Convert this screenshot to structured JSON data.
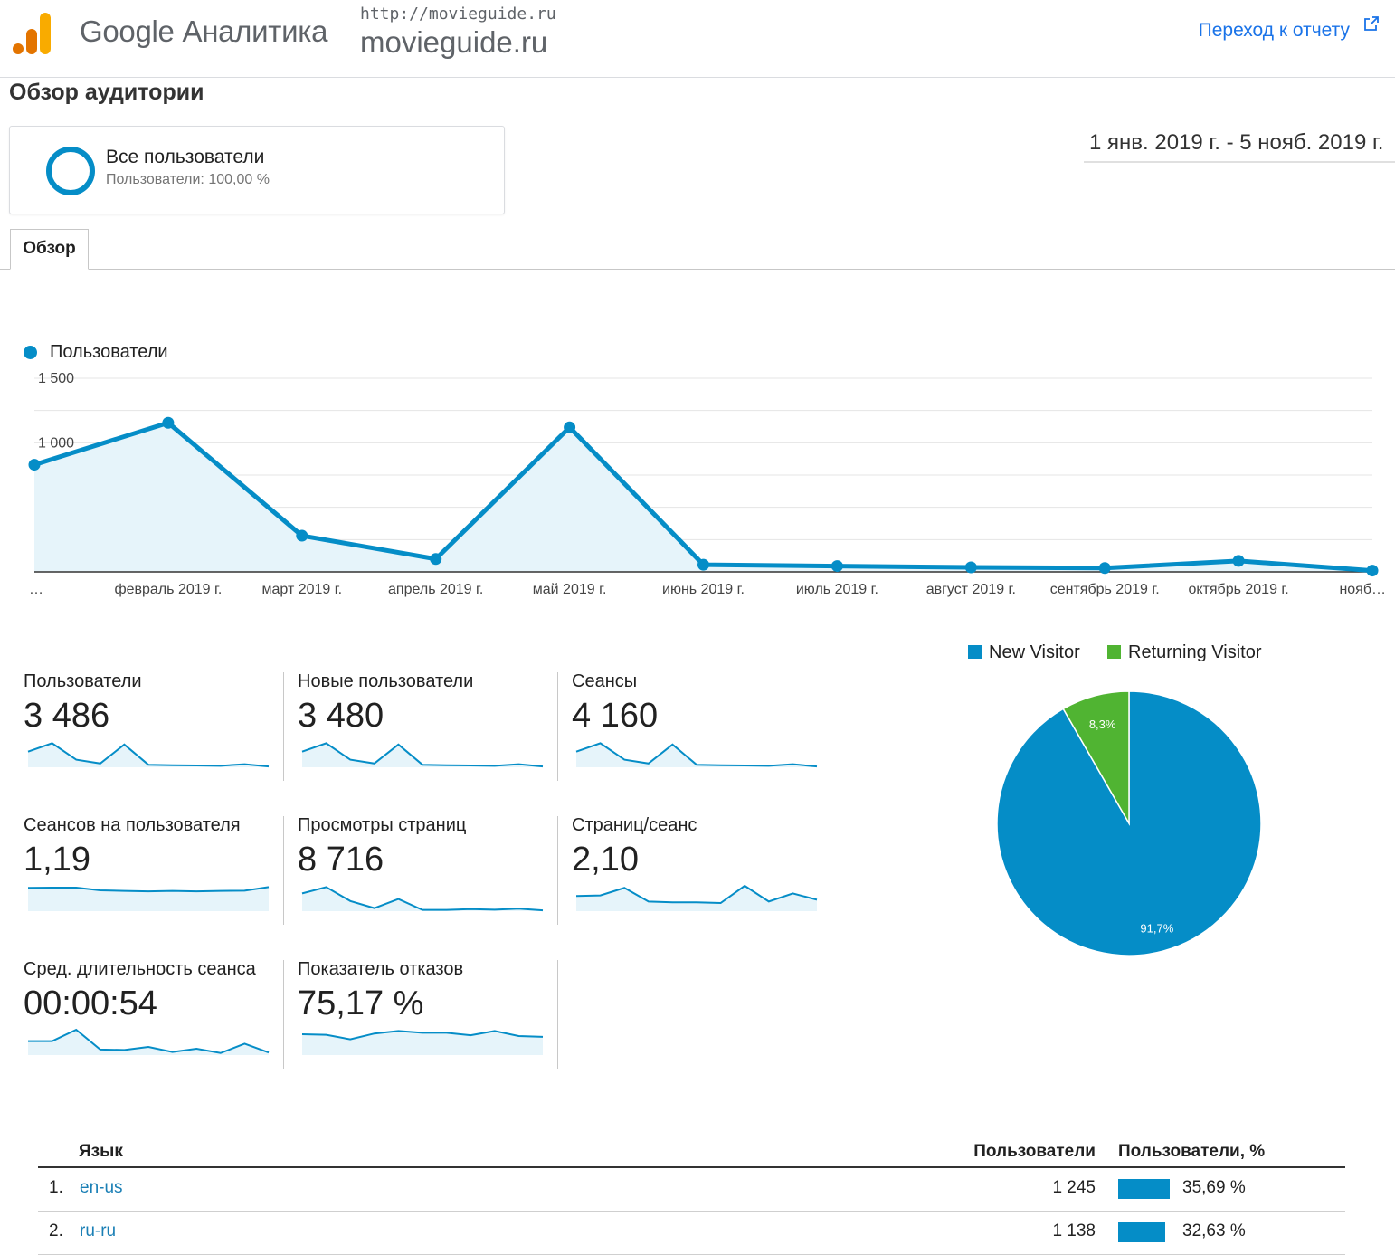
{
  "header": {
    "brand": "Google Аналитика",
    "site_url": "http://movieguide.ru",
    "site_name": "movieguide.ru",
    "report_link": "Переход к отчету"
  },
  "page_title": "Обзор аудитории",
  "segment": {
    "title": "Все пользователи",
    "subtitle": "Пользователи: 100,00 %"
  },
  "date_range": "1 янв. 2019 г. - 5 нояб. 2019 г.",
  "tab": "Обзор",
  "chart_data": [
    {
      "type": "line",
      "series": [
        {
          "name": "Пользователи",
          "values": [
            830,
            1155,
            280,
            100,
            1120,
            55,
            45,
            35,
            30,
            85,
            10
          ]
        }
      ],
      "categories": [
        "…",
        "февраль 2019 г.",
        "март 2019 г.",
        "апрель 2019 г.",
        "май 2019 г.",
        "июнь 2019 г.",
        "июль 2019 г.",
        "август 2019 г.",
        "сентябрь 2019 г.",
        "октябрь 2019 г.",
        "нояб…"
      ],
      "y_ticks": [
        "1 500",
        "1 000",
        "500"
      ],
      "ylim": [
        0,
        1500
      ],
      "color": "#058dc7",
      "grid": true
    },
    {
      "type": "pie",
      "categories": [
        "New Visitor",
        "Returning Visitor"
      ],
      "values": [
        91.7,
        8.3
      ],
      "data_labels": [
        "91,7%",
        "8,3%"
      ],
      "colors": [
        "#058dc7",
        "#50b432"
      ]
    }
  ],
  "metrics": [
    {
      "label": "Пользователи",
      "value": "3 486",
      "spark": [
        0.62,
        0.95,
        0.3,
        0.15,
        0.9,
        0.1,
        0.08,
        0.07,
        0.06,
        0.12,
        0.03
      ]
    },
    {
      "label": "Новые пользователи",
      "value": "3 480",
      "spark": [
        0.62,
        0.95,
        0.3,
        0.15,
        0.9,
        0.1,
        0.08,
        0.07,
        0.06,
        0.12,
        0.03
      ]
    },
    {
      "label": "Сеансы",
      "value": "4 160",
      "spark": [
        0.62,
        0.95,
        0.3,
        0.15,
        0.9,
        0.1,
        0.08,
        0.07,
        0.06,
        0.12,
        0.03
      ]
    },
    {
      "label": "Сеансов на пользователя",
      "value": "1,19",
      "spark": [
        0.92,
        0.93,
        0.93,
        0.82,
        0.8,
        0.78,
        0.8,
        0.78,
        0.8,
        0.81,
        0.95
      ]
    },
    {
      "label": "Просмотры страниц",
      "value": "8 716",
      "spark": [
        0.7,
        0.95,
        0.4,
        0.12,
        0.48,
        0.05,
        0.05,
        0.08,
        0.06,
        0.1,
        0.03
      ]
    },
    {
      "label": "Страниц/сеанс",
      "value": "2,10",
      "spark": [
        0.6,
        0.62,
        0.92,
        0.38,
        0.35,
        0.35,
        0.32,
        1.0,
        0.38,
        0.7,
        0.45
      ]
    },
    {
      "label": "Сред. длительность сеанса",
      "value": "00:00:54",
      "spark": [
        0.55,
        0.55,
        1.0,
        0.22,
        0.2,
        0.32,
        0.12,
        0.25,
        0.08,
        0.45,
        0.1
      ]
    },
    {
      "label": "Показатель отказов",
      "value": "75,17 %",
      "spark": [
        0.82,
        0.8,
        0.62,
        0.85,
        0.95,
        0.88,
        0.88,
        0.78,
        0.95,
        0.75,
        0.72
      ]
    }
  ],
  "table": {
    "headers": [
      "Язык",
      "Пользователи",
      "Пользователи, %"
    ],
    "rows": [
      {
        "rank": "1.",
        "lang": "en-us",
        "users": "1 245",
        "pct_label": "35,69 %",
        "pct": 35.69
      },
      {
        "rank": "2.",
        "lang": "ru-ru",
        "users": "1 138",
        "pct_label": "32,63 %",
        "pct": 32.63
      }
    ]
  },
  "colors": {
    "accent": "#058dc7",
    "secondary": "#50b432",
    "link": "#1a73e8"
  },
  "icons": {
    "logo": "analytics-logo-icon",
    "external": "external-link-icon"
  }
}
